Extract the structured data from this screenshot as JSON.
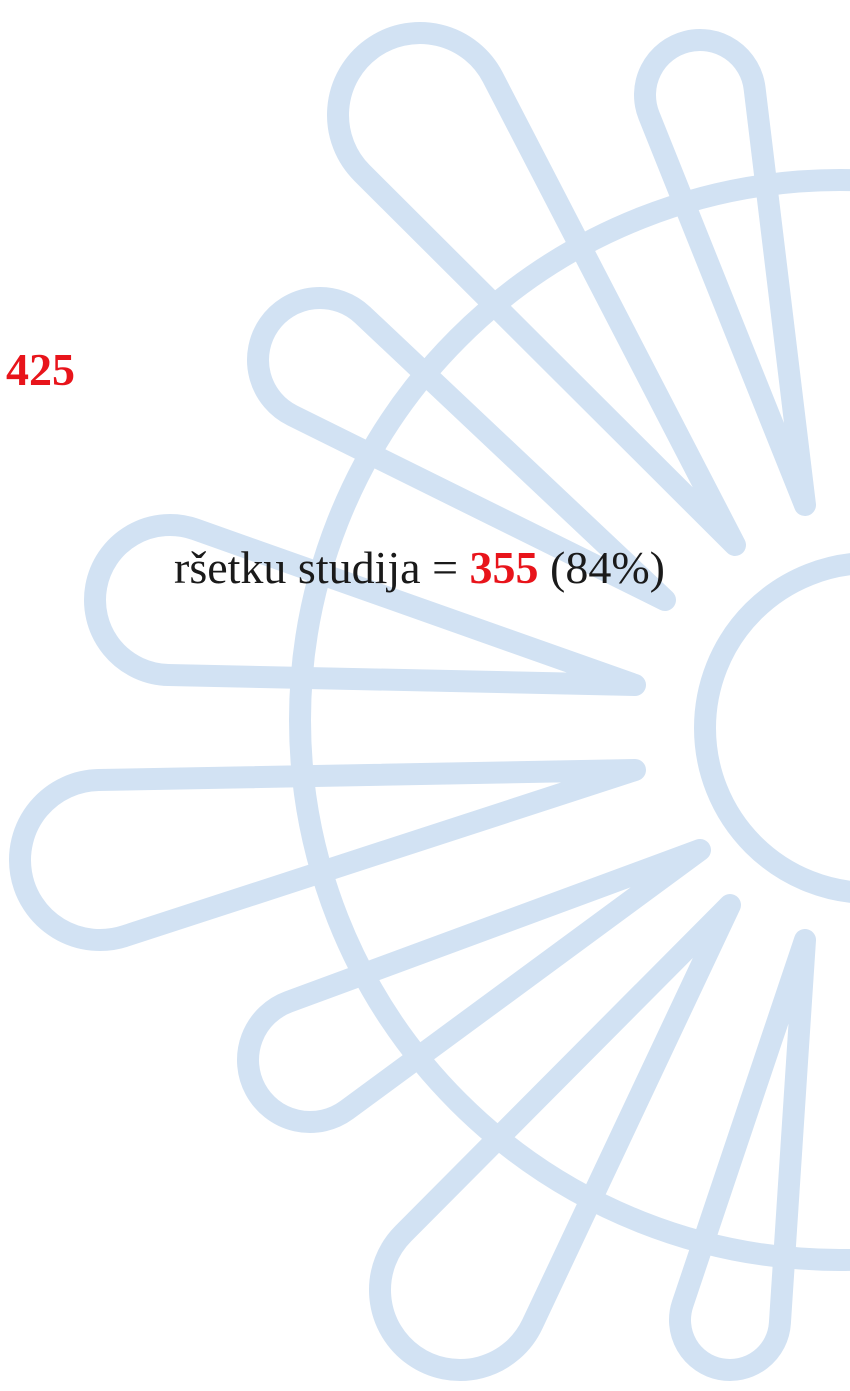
{
  "slide": {
    "line1": {
      "number": "425"
    },
    "line2": {
      "text": "ršetku studija =",
      "number": "355",
      "suffix": "(84%)"
    }
  }
}
